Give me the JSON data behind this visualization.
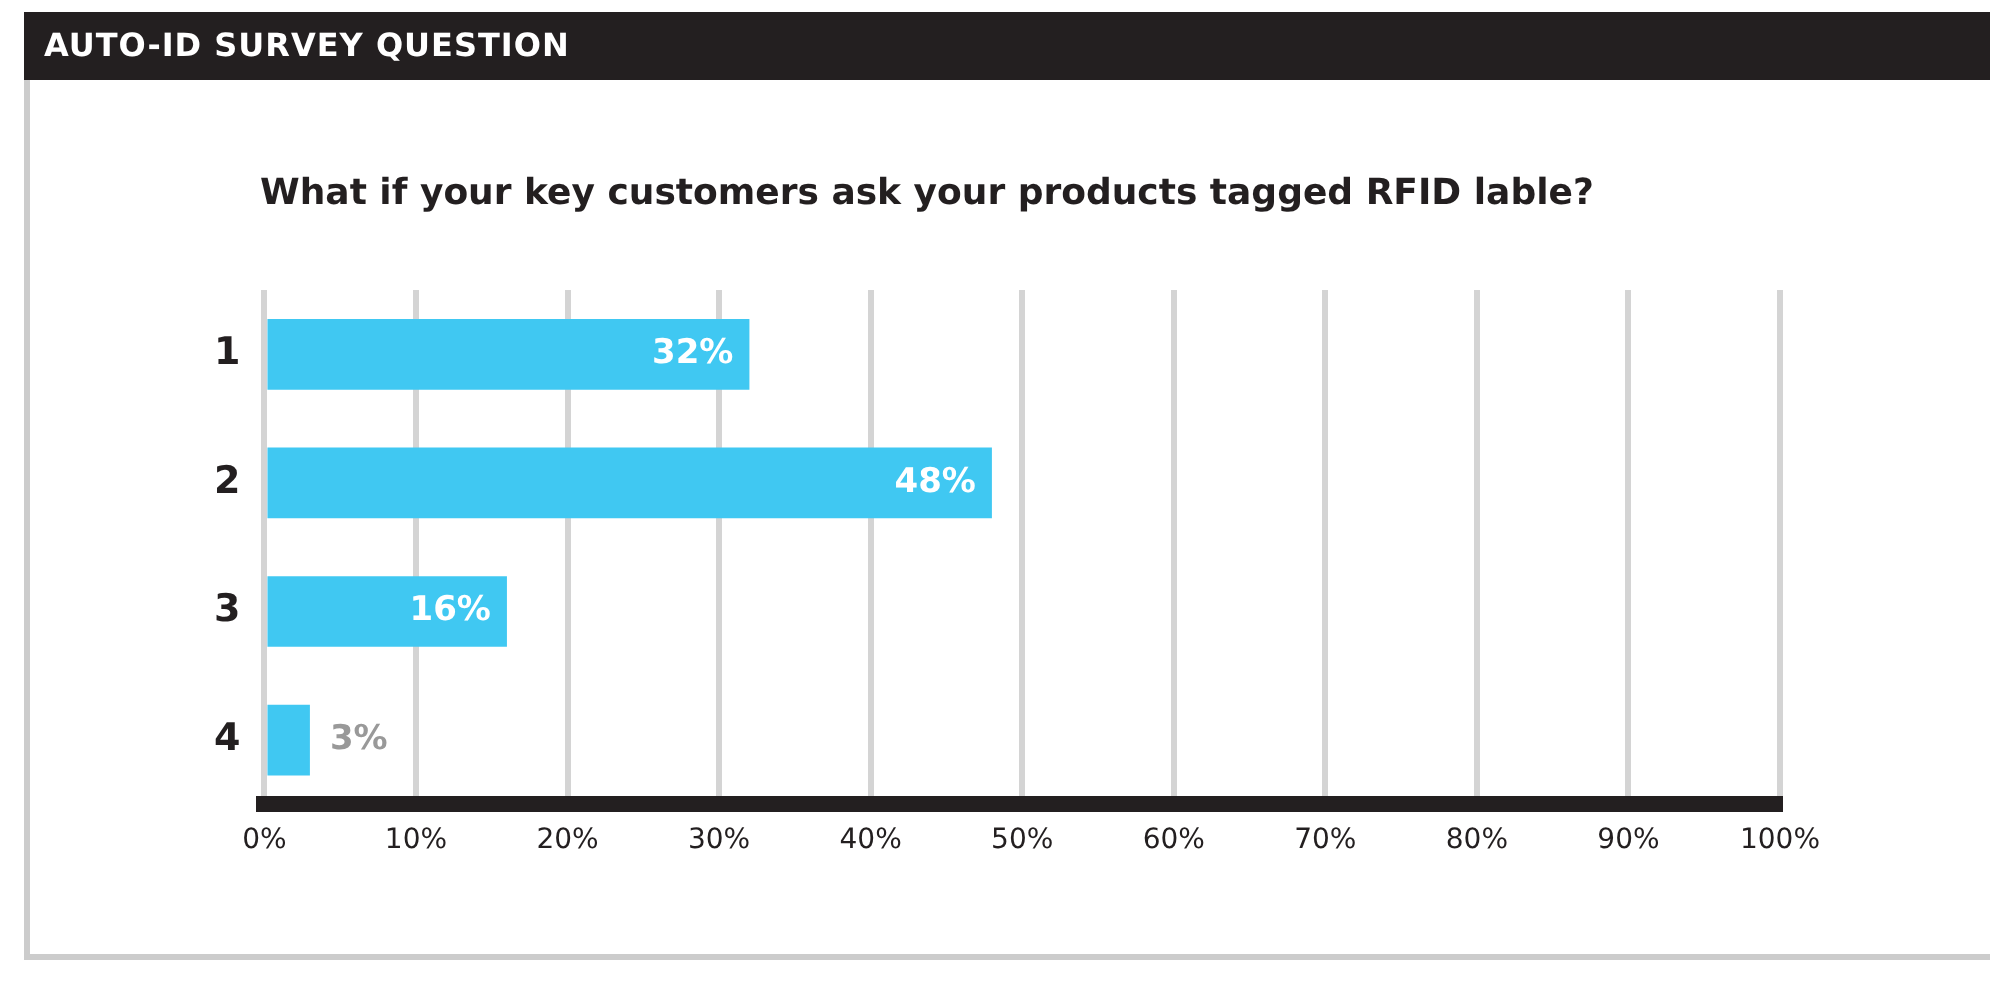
{
  "chart_data": {
    "type": "bar",
    "orientation": "horizontal",
    "title": "AUTO-ID SURVEY QUESTION",
    "subtitle": "What if your key customers ask your products tagged RFID lable?",
    "categories": [
      "1",
      "2",
      "3",
      "4"
    ],
    "values": [
      32,
      48,
      16,
      3
    ],
    "value_labels": [
      "32%",
      "48%",
      "16%",
      "3%"
    ],
    "color": "#40c8f2",
    "xlim": [
      0,
      100
    ],
    "xticks": [
      {
        "value": 0,
        "label": "0%"
      },
      {
        "value": 10,
        "label": "10%"
      },
      {
        "value": 20,
        "label": "20%"
      },
      {
        "value": 30,
        "label": "30%"
      },
      {
        "value": 40,
        "label": "40%"
      },
      {
        "value": 50,
        "label": "50%"
      },
      {
        "value": 60,
        "label": "60%"
      },
      {
        "value": 70,
        "label": "70%"
      },
      {
        "value": 80,
        "label": "80%"
      },
      {
        "value": 90,
        "label": "90%"
      },
      {
        "value": 100,
        "label": "100%"
      }
    ],
    "grid": "x",
    "legend": false
  }
}
